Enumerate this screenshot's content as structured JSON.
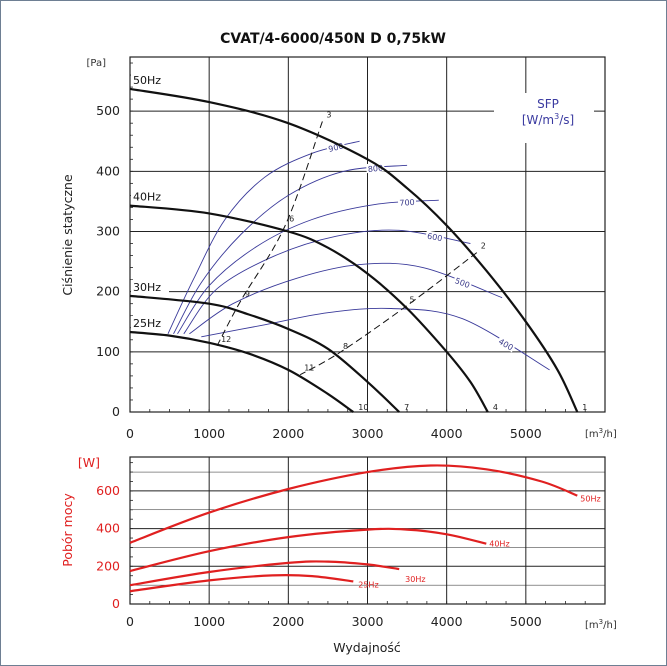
{
  "title": "CVAT/4-6000/450N D 0,75kW",
  "chart_data": [
    {
      "type": "line",
      "name": "static-pressure",
      "ylabel": "Ciśnienie statyczne",
      "yunit": "[Pa]",
      "xunit": "[m³/h]",
      "xlim": [
        0,
        6000
      ],
      "ylim": [
        0,
        590
      ],
      "xticks": [
        0,
        1000,
        2000,
        3000,
        4000,
        5000
      ],
      "yticks": [
        0,
        100,
        200,
        300,
        400,
        500
      ],
      "grid": true,
      "series": [
        {
          "name": "50Hz",
          "x": [
            0,
            1000,
            2000,
            3000,
            3500,
            4000,
            4500,
            5000,
            5400,
            5650
          ],
          "y": [
            537,
            515,
            480,
            420,
            372,
            310,
            235,
            150,
            70,
            0
          ]
        },
        {
          "name": "40Hz",
          "x": [
            0,
            1000,
            2000,
            2500,
            3000,
            3500,
            4000,
            4300,
            4520
          ],
          "y": [
            343,
            330,
            300,
            273,
            230,
            172,
            100,
            50,
            0
          ]
        },
        {
          "name": "30Hz",
          "x": [
            0,
            1000,
            1500,
            2000,
            2500,
            3000,
            3400
          ],
          "y": [
            193,
            180,
            162,
            138,
            105,
            50,
            0
          ]
        },
        {
          "name": "25Hz",
          "x": [
            0,
            500,
            1000,
            1500,
            2000,
            2500,
            2820
          ],
          "y": [
            133,
            127,
            115,
            97,
            70,
            30,
            0
          ]
        }
      ],
      "sfp": {
        "label": "SFP",
        "unit": "[W/m³/s]",
        "series": [
          {
            "name": "900",
            "x": [
              480,
              800,
              1200,
              1700,
              2300,
              2900
            ],
            "y": [
              130,
              220,
              320,
              390,
              430,
              450
            ]
          },
          {
            "name": "800",
            "x": [
              550,
              900,
              1400,
              2000,
              2700,
              3500
            ],
            "y": [
              130,
              215,
              295,
              360,
              400,
              410
            ]
          },
          {
            "name": "700",
            "x": [
              600,
              1000,
              1600,
              2300,
              3100,
              3900
            ],
            "y": [
              130,
              210,
              275,
              320,
              345,
              352
            ]
          },
          {
            "name": "600",
            "x": [
              680,
              1100,
              1800,
              2600,
              3400,
              4300
            ],
            "y": [
              130,
              205,
              258,
              292,
              302,
              280
            ]
          },
          {
            "name": "500",
            "x": [
              750,
              1300,
              2100,
              2900,
              3700,
              4700
            ],
            "y": [
              130,
              180,
              222,
              245,
              240,
              190
            ]
          },
          {
            "name": "400",
            "x": [
              900,
              1700,
              2500,
              3300,
              4200,
              5300
            ],
            "y": [
              125,
              145,
              165,
              172,
              155,
              70
            ]
          }
        ]
      },
      "points": [
        {
          "label": "1",
          "x": 5650,
          "y": 0
        },
        {
          "label": "2",
          "x": 4380,
          "y": 265
        },
        {
          "label": "3",
          "x": 2430,
          "y": 483
        },
        {
          "label": "4",
          "x": 4520,
          "y": 0
        },
        {
          "label": "5",
          "x": 3480,
          "y": 175
        },
        {
          "label": "6",
          "x": 1960,
          "y": 310
        },
        {
          "label": "7",
          "x": 3400,
          "y": 0
        },
        {
          "label": "8",
          "x": 2640,
          "y": 98
        },
        {
          "label": "9",
          "x": 1400,
          "y": 185
        },
        {
          "label": "10",
          "x": 2820,
          "y": 0
        },
        {
          "label": "11",
          "x": 2150,
          "y": 62
        },
        {
          "label": "12",
          "x": 1100,
          "y": 110
        }
      ],
      "dashed_lines": [
        {
          "x": [
            4380,
            3480,
            2640,
            2150
          ],
          "y": [
            265,
            175,
            98,
            62
          ]
        },
        {
          "x": [
            2430,
            1960,
            1400,
            1100
          ],
          "y": [
            483,
            310,
            185,
            110
          ]
        }
      ]
    },
    {
      "type": "line",
      "name": "power",
      "ylabel": "Pobór mocy",
      "yunit": "[W]",
      "xlabel": "Wydajność",
      "xunit": "[m³/h]",
      "xlim": [
        0,
        6000
      ],
      "ylim": [
        0,
        780
      ],
      "xticks": [
        0,
        1000,
        2000,
        3000,
        4000,
        5000
      ],
      "yticks": [
        0,
        200,
        400,
        600
      ],
      "grid": true,
      "series": [
        {
          "name": "50Hz",
          "x": [
            0,
            1000,
            2000,
            3000,
            3800,
            4500,
            5200,
            5650
          ],
          "y": [
            325,
            485,
            610,
            700,
            735,
            715,
            650,
            575
          ]
        },
        {
          "name": "40Hz",
          "x": [
            0,
            1000,
            2000,
            3000,
            3500,
            4000,
            4500
          ],
          "y": [
            175,
            280,
            355,
            395,
            395,
            370,
            320
          ]
        },
        {
          "name": "30Hz",
          "x": [
            0,
            1000,
            2000,
            2500,
            3000,
            3400
          ],
          "y": [
            100,
            170,
            218,
            225,
            210,
            185
          ]
        },
        {
          "name": "25Hz",
          "x": [
            0,
            1000,
            1800,
            2300,
            2820
          ],
          "y": [
            68,
            125,
            152,
            148,
            120
          ]
        }
      ]
    }
  ]
}
